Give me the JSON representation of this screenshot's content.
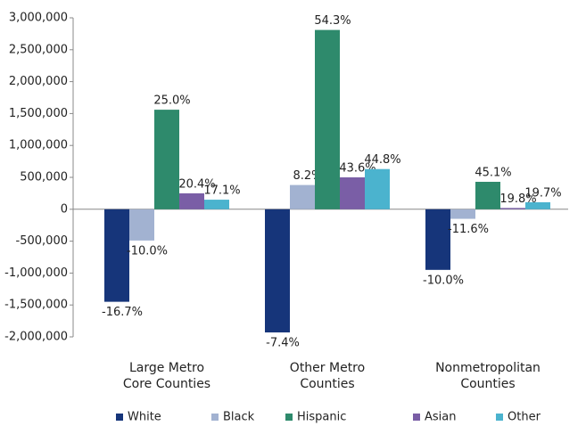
{
  "chart_data": {
    "type": "bar",
    "categories": [
      "Large Metro\nCore Counties",
      "Other Metro\nCounties",
      "Nonmetropolitan\nCounties"
    ],
    "series": [
      {
        "name": "White",
        "color": "#16357a",
        "values": [
          -1450000,
          -1930000,
          -950000
        ],
        "change_labels": [
          "-16.7%",
          "-7.4%",
          "-10.0%"
        ]
      },
      {
        "name": "Black",
        "color": "#a2b2d1",
        "values": [
          -490000,
          380000,
          -150000
        ],
        "change_labels": [
          "-10.0%",
          "8.2%",
          "-11.6%"
        ]
      },
      {
        "name": "Hispanic",
        "color": "#2e8a6c",
        "values": [
          1560000,
          2810000,
          430000
        ],
        "change_labels": [
          "25.0%",
          "54.3%",
          "45.1%"
        ]
      },
      {
        "name": "Asian",
        "color": "#7a5ea6",
        "values": [
          250000,
          500000,
          20000
        ],
        "change_labels": [
          "20.4%",
          "43.6%",
          "19.8%"
        ]
      },
      {
        "name": "Other",
        "color": "#4bb3ce",
        "values": [
          150000,
          630000,
          110000
        ],
        "change_labels": [
          "17.1%",
          "44.8%",
          "19.7%"
        ]
      }
    ],
    "ylim": [
      -2000000,
      3000000
    ],
    "yticks": [
      {
        "value": -2000000,
        "label": "-2,000,000"
      },
      {
        "value": -1500000,
        "label": "-1,500,000"
      },
      {
        "value": -1000000,
        "label": "-1,000,000"
      },
      {
        "value": -500000,
        "label": "-500,000"
      },
      0,
      {
        "value": 500000,
        "label": "500,000"
      },
      {
        "value": 1000000,
        "label": "1,000,000"
      },
      {
        "value": 1500000,
        "label": "1,500,000"
      },
      {
        "value": 2000000,
        "label": "2,000,000"
      },
      {
        "value": 2500000,
        "label": "2,500,000"
      },
      {
        "value": 3000000,
        "label": "3,000,000"
      }
    ],
    "grid": false,
    "legend": "bottom"
  }
}
